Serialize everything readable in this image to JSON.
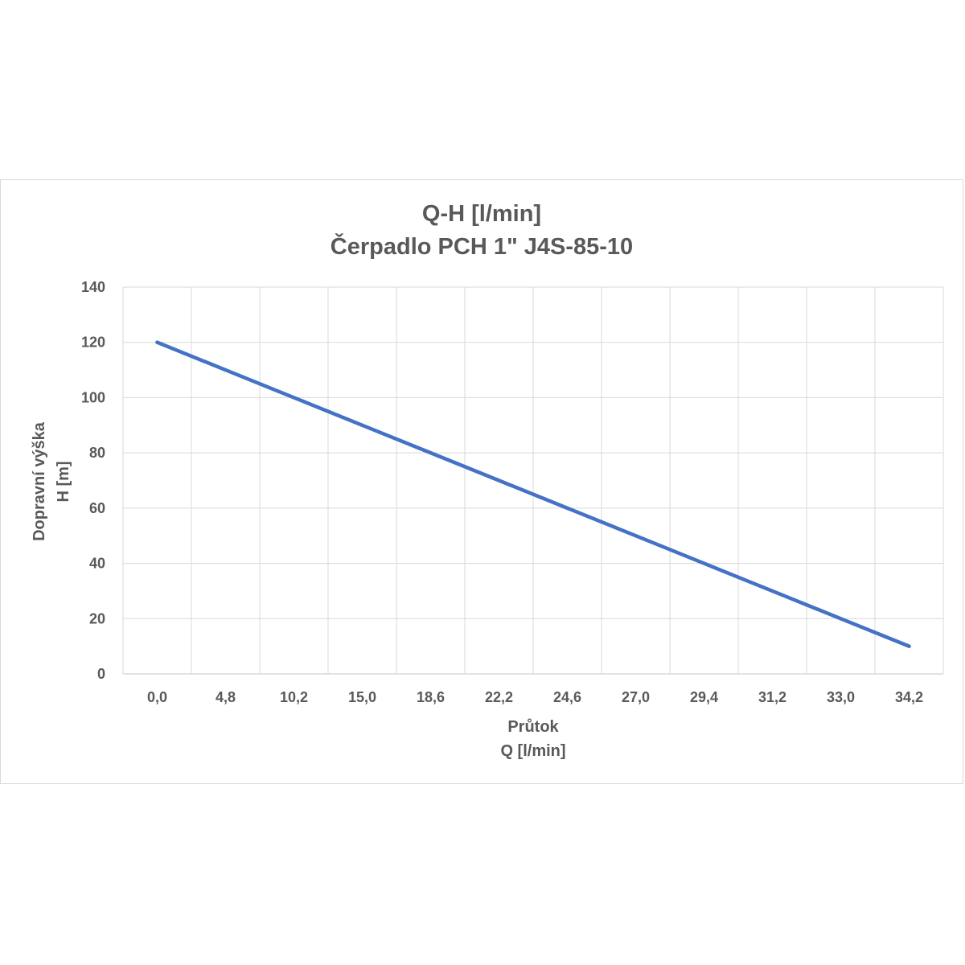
{
  "chart_data": {
    "type": "line",
    "title_lines": [
      "Q-H [l/min]",
      "Čerpadlo PCH 1\" J4S-85-10"
    ],
    "xlabel_lines": [
      "Průtok",
      "Q [l/min]"
    ],
    "ylabel_lines": [
      "Dopravní výška",
      "H [m]"
    ],
    "categories": [
      "0,0",
      "4,8",
      "10,2",
      "15,0",
      "18,6",
      "22,2",
      "24,6",
      "27,0",
      "29,4",
      "31,2",
      "33,0",
      "34,2"
    ],
    "series": [
      {
        "values": [
          120,
          110,
          100,
          90,
          80,
          70,
          60,
          50,
          40,
          30,
          20,
          10
        ]
      }
    ],
    "ylim": [
      0,
      140
    ],
    "yticks": [
      "0",
      "20",
      "40",
      "60",
      "80",
      "100",
      "120",
      "140"
    ],
    "grid": true,
    "legend": "none",
    "colors": {
      "line": "#4472c4",
      "grid": "#d9d9d9",
      "text": "#595959"
    }
  }
}
